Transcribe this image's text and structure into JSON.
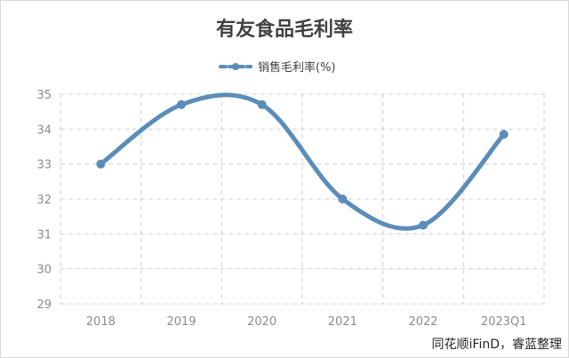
{
  "chart_data": {
    "type": "line",
    "title": "有友食品毛利率",
    "categories": [
      "2018",
      "2019",
      "2020",
      "2021",
      "2022",
      "2023Q1"
    ],
    "series": [
      {
        "name": "销售毛利率(%)",
        "values": [
          33.0,
          34.7,
          34.7,
          32.0,
          31.25,
          33.85
        ],
        "color": "#5b8db8",
        "smooth": true,
        "marker": "circle"
      }
    ],
    "ylim": [
      29,
      35
    ],
    "yticks": [
      "29",
      "30",
      "31",
      "32",
      "33",
      "34",
      "35"
    ],
    "grid": "dashed",
    "legend_position": "top-center",
    "xlabel": "",
    "ylabel": ""
  },
  "source_note": "同花顺iFinD，睿蓝整理"
}
